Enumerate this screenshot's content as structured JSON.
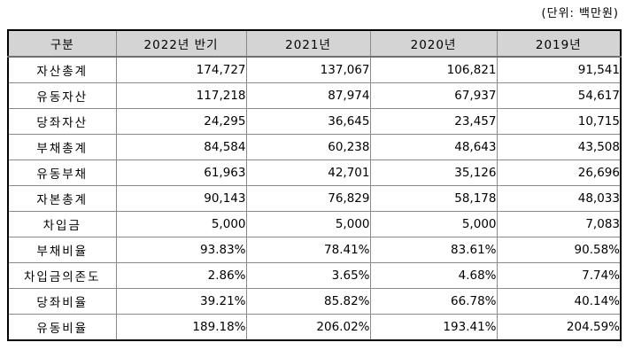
{
  "unit_label": "(단위: 백만원)",
  "table": {
    "columns": [
      "구분",
      "2022년 반기",
      "2021년",
      "2020년",
      "2019년"
    ],
    "rows": [
      {
        "label": "자산총계",
        "values": [
          "174,727",
          "137,067",
          "106,821",
          "91,541"
        ]
      },
      {
        "label": "유동자산",
        "values": [
          "117,218",
          "87,974",
          "67,937",
          "54,617"
        ]
      },
      {
        "label": "당좌자산",
        "values": [
          "24,295",
          "36,645",
          "23,457",
          "10,715"
        ]
      },
      {
        "label": "부채총계",
        "values": [
          "84,584",
          "60,238",
          "48,643",
          "43,508"
        ]
      },
      {
        "label": "유동부채",
        "values": [
          "61,963",
          "42,701",
          "35,126",
          "26,696"
        ]
      },
      {
        "label": "자본총계",
        "values": [
          "90,143",
          "76,829",
          "58,178",
          "48,033"
        ]
      },
      {
        "label": "차입금",
        "values": [
          "5,000",
          "5,000",
          "5,000",
          "7,083"
        ]
      },
      {
        "label": "부채비율",
        "values": [
          "93.83%",
          "78.41%",
          "83.61%",
          "90.58%"
        ]
      },
      {
        "label": "차입금의존도",
        "values": [
          "2.86%",
          "3.65%",
          "4.68%",
          "7.74%"
        ]
      },
      {
        "label": "당좌비율",
        "values": [
          "39.21%",
          "85.82%",
          "66.78%",
          "40.14%"
        ]
      },
      {
        "label": "유동비율",
        "values": [
          "189.18%",
          "206.02%",
          "193.41%",
          "204.59%"
        ]
      }
    ]
  },
  "colors": {
    "header_bg": "#d4d4d4",
    "outer_border": "#000000",
    "inner_border": "#8a8a8a"
  }
}
